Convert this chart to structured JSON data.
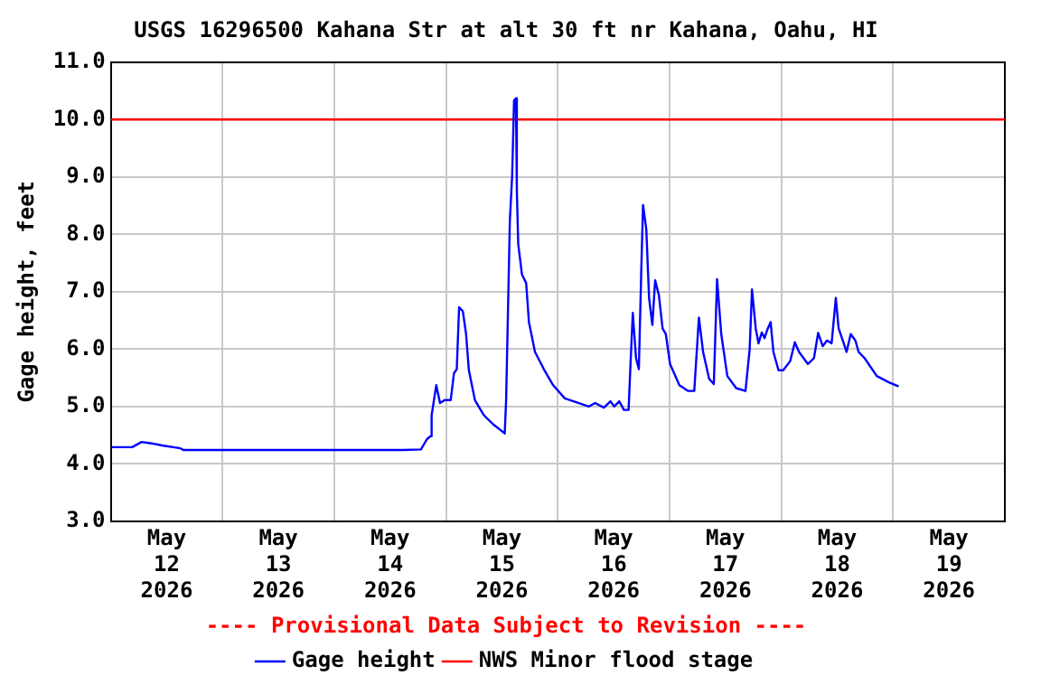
{
  "chart_data": {
    "type": "line",
    "title": "USGS 16296500 Kahana Str at alt 30 ft nr Kahana, Oahu, HI",
    "ylabel": "Gage height, feet",
    "annotations": [
      "---- Provisional Data Subject to Revision ----"
    ],
    "x": [
      "2026-05-12T00:15",
      "2026-05-12T04:36",
      "2026-05-12T06:36",
      "2026-05-12T08:30",
      "2026-05-12T11:06",
      "2026-05-12T15:00",
      "2026-05-12T15:36",
      "2026-05-13T23:12",
      "2026-05-14T14:42",
      "2026-05-14T18:36",
      "2026-05-14T19:54",
      "2026-05-14T20:36",
      "2026-05-14T20:54",
      "2026-05-14T21:24",
      "2026-05-14T21:54",
      "2026-05-14T22:42",
      "2026-05-14T23:42",
      "2026-05-15T01:00",
      "2026-05-15T01:42",
      "2026-05-15T02:18",
      "2026-05-15T02:48",
      "2026-05-15T03:36",
      "2026-05-15T04:18",
      "2026-05-15T04:54",
      "2026-05-15T06:12",
      "2026-05-15T08:06",
      "2026-05-15T10:06",
      "2026-05-15T12:36",
      "2026-05-15T12:54",
      "2026-05-15T13:42",
      "2026-05-15T14:12",
      "2026-05-15T14:36",
      "2026-05-15T15:00",
      "2026-05-15T15:12",
      "2026-05-15T15:30",
      "2026-05-15T16:18",
      "2026-05-15T17:12",
      "2026-05-15T17:48",
      "2026-05-15T19:06",
      "2026-05-15T21:00",
      "2026-05-15T23:00",
      "2026-05-16T01:30",
      "2026-05-16T06:42",
      "2026-05-16T08:00",
      "2026-05-16T09:54",
      "2026-05-16T11:18",
      "2026-05-16T12:06",
      "2026-05-16T13:12",
      "2026-05-16T14:12",
      "2026-05-16T15:12",
      "2026-05-16T15:30",
      "2026-05-16T16:06",
      "2026-05-16T16:48",
      "2026-05-16T17:24",
      "2026-05-16T17:54",
      "2026-05-16T18:18",
      "2026-05-16T19:00",
      "2026-05-16T19:36",
      "2026-05-16T20:18",
      "2026-05-16T20:54",
      "2026-05-16T21:42",
      "2026-05-16T22:30",
      "2026-05-16T23:12",
      "2026-05-17T00:06",
      "2026-05-17T02:06",
      "2026-05-17T04:00",
      "2026-05-17T05:18",
      "2026-05-17T06:18",
      "2026-05-17T07:12",
      "2026-05-17T08:30",
      "2026-05-17T09:30",
      "2026-05-17T10:12",
      "2026-05-17T11:06",
      "2026-05-17T12:24",
      "2026-05-17T14:18",
      "2026-05-17T16:18",
      "2026-05-17T17:12",
      "2026-05-17T17:42",
      "2026-05-17T18:30",
      "2026-05-17T19:06",
      "2026-05-17T19:48",
      "2026-05-17T20:24",
      "2026-05-17T21:00",
      "2026-05-17T21:42",
      "2026-05-17T22:18",
      "2026-05-17T23:24",
      "2026-05-18T00:24",
      "2026-05-18T01:54",
      "2026-05-18T02:54",
      "2026-05-18T03:48",
      "2026-05-18T04:48",
      "2026-05-18T05:42",
      "2026-05-18T07:00",
      "2026-05-18T07:54",
      "2026-05-18T08:54",
      "2026-05-18T09:48",
      "2026-05-18T10:48",
      "2026-05-18T11:42",
      "2026-05-18T12:18",
      "2026-05-18T13:24",
      "2026-05-18T14:00",
      "2026-05-18T14:54",
      "2026-05-18T15:54",
      "2026-05-18T16:36",
      "2026-05-18T17:54",
      "2026-05-18T20:30",
      "2026-05-18T23:06",
      "2026-05-19T01:12"
    ],
    "series": [
      {
        "name": "Gage height",
        "color": "#0000ff",
        "values": [
          4.29,
          4.29,
          4.38,
          4.36,
          4.32,
          4.27,
          4.24,
          4.24,
          4.24,
          4.25,
          4.43,
          4.48,
          4.85,
          5.11,
          5.37,
          5.06,
          5.11,
          5.11,
          5.58,
          5.65,
          6.73,
          6.66,
          6.26,
          5.63,
          5.11,
          4.85,
          4.69,
          4.53,
          5.11,
          8.24,
          9.03,
          10.33,
          10.37,
          8.77,
          7.83,
          7.3,
          7.15,
          6.47,
          5.95,
          5.65,
          5.37,
          5.14,
          5.0,
          5.06,
          4.98,
          5.09,
          5.0,
          5.09,
          4.94,
          4.94,
          5.53,
          6.63,
          5.84,
          5.65,
          7.3,
          8.51,
          8.09,
          6.89,
          6.42,
          7.2,
          6.94,
          6.36,
          6.26,
          5.74,
          5.37,
          5.27,
          5.27,
          6.55,
          5.95,
          5.48,
          5.39,
          7.22,
          6.26,
          5.53,
          5.32,
          5.27,
          6.0,
          7.04,
          6.36,
          6.1,
          6.29,
          6.19,
          6.34,
          6.47,
          5.95,
          5.63,
          5.63,
          5.79,
          6.12,
          5.95,
          5.84,
          5.74,
          5.84,
          6.28,
          6.05,
          6.15,
          6.1,
          6.89,
          6.36,
          6.1,
          5.95,
          6.26,
          6.15,
          5.95,
          5.84,
          5.53,
          5.42,
          5.35
        ]
      }
    ],
    "ref_lines": [
      {
        "axis": "y",
        "value": 10,
        "label": "NWS Minor flood stage",
        "color": "#ff0000"
      }
    ],
    "xlim": [
      "2026-05-12T00:00",
      "2026-05-20T00:00"
    ],
    "xticks": [
      {
        "value": "2026-05-12T12:00",
        "label": "May 12 2026"
      },
      {
        "value": "2026-05-13T00:00",
        "label": null
      },
      {
        "value": "2026-05-13T12:00",
        "label": "May 13 2026"
      },
      {
        "value": "2026-05-14T00:00",
        "label": null
      },
      {
        "value": "2026-05-14T12:00",
        "label": "May 14 2026"
      },
      {
        "value": "2026-05-15T00:00",
        "label": null
      },
      {
        "value": "2026-05-15T12:00",
        "label": "May 15 2026"
      },
      {
        "value": "2026-05-16T00:00",
        "label": null
      },
      {
        "value": "2026-05-16T12:00",
        "label": "May 16 2026"
      },
      {
        "value": "2026-05-17T00:00",
        "label": null
      },
      {
        "value": "2026-05-17T12:00",
        "label": "May 17 2026"
      },
      {
        "value": "2026-05-18T00:00",
        "label": null
      },
      {
        "value": "2026-05-18T12:00",
        "label": "May 18 2026"
      },
      {
        "value": "2026-05-19T00:00",
        "label": null
      },
      {
        "value": "2026-05-19T12:00",
        "label": "May 19 2026"
      }
    ],
    "ylim": [
      3,
      11
    ],
    "yticks": [
      {
        "value": 3,
        "label": "3.0"
      },
      {
        "value": 4,
        "label": "4.0"
      },
      {
        "value": 5,
        "label": "5.0"
      },
      {
        "value": 6,
        "label": "6.0"
      },
      {
        "value": 7,
        "label": "7.0"
      },
      {
        "value": 8,
        "label": "8.0"
      },
      {
        "value": 9,
        "label": "9.0"
      },
      {
        "value": 10,
        "label": "10.0"
      },
      {
        "value": 11,
        "label": "11.0"
      }
    ],
    "grid": true,
    "legend": "bottom"
  }
}
